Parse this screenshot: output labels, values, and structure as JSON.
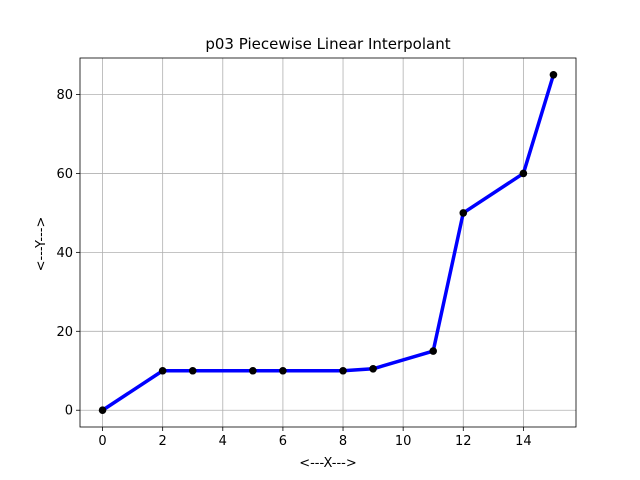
{
  "chart_data": {
    "type": "line",
    "title": "p03 Piecewise Linear Interpolant",
    "xlabel": "<---X--->",
    "ylabel": "<---Y--->",
    "xlim": [
      -0.75,
      15.75
    ],
    "ylim": [
      -4.25,
      89.25
    ],
    "xticks": [
      0,
      2,
      4,
      6,
      8,
      10,
      12,
      14
    ],
    "yticks": [
      0,
      20,
      40,
      60,
      80
    ],
    "grid": true,
    "series": [
      {
        "x": [
          0,
          2,
          3,
          5,
          6,
          8,
          9,
          11,
          12,
          14,
          15
        ],
        "y": [
          0,
          10,
          10,
          10,
          10,
          10,
          10.5,
          15,
          50,
          60,
          85
        ],
        "line_color": "#0000ff",
        "marker_color": "#000000"
      }
    ]
  }
}
